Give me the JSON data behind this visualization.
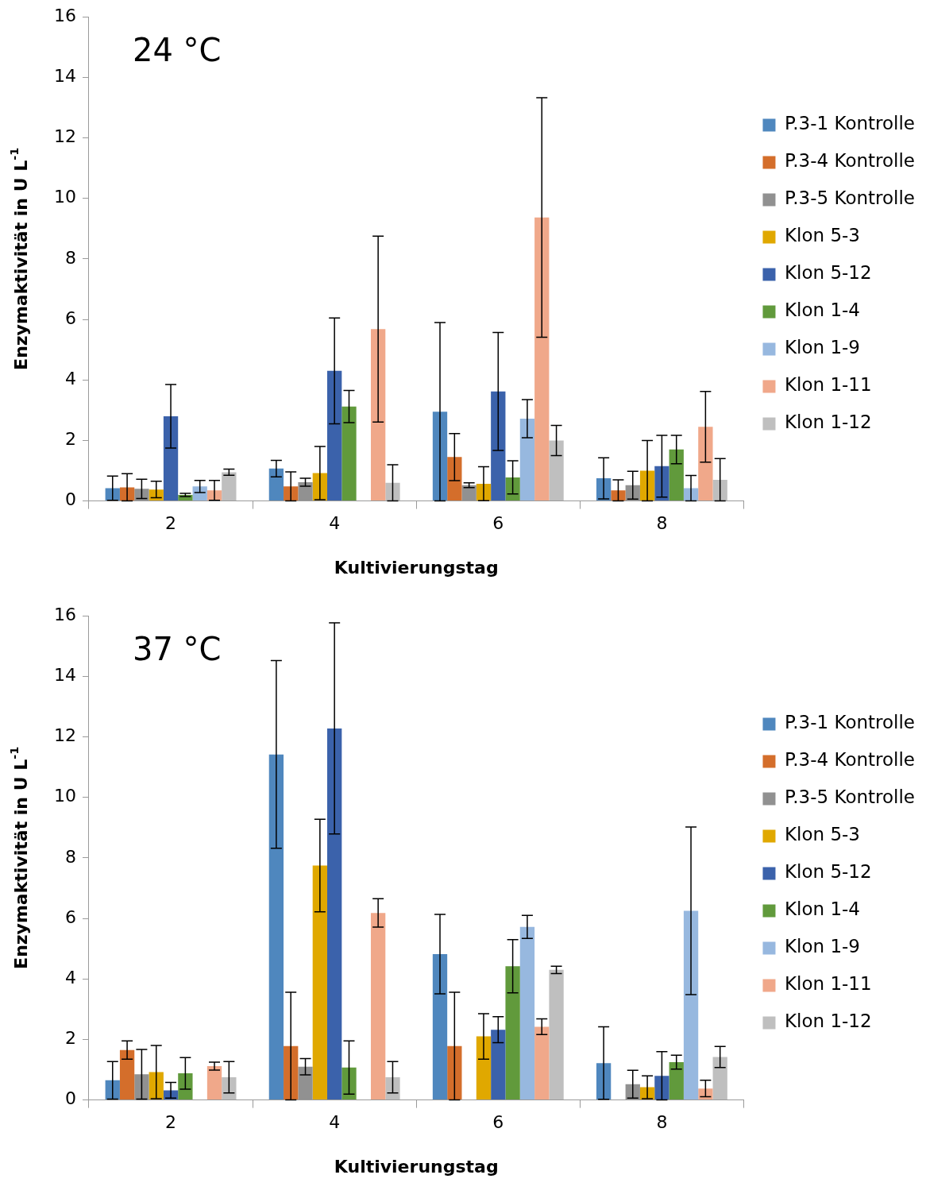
{
  "chart_data": [
    {
      "type": "bar",
      "annotations": [
        "24 °C"
      ],
      "xlabel": "Kultivierungstag",
      "ylabel": "Enzymaktivität in U L$^{-1}$",
      "categories": [
        "2",
        "4",
        "6",
        "8"
      ],
      "ylim": [
        0,
        16
      ],
      "yticks": [
        0,
        2,
        4,
        6,
        8,
        10,
        12,
        14,
        16
      ],
      "legend": "right",
      "series": [
        {
          "name": "P.3-1 Kontrolle",
          "color": "#4f87be",
          "values": [
            0.42,
            1.07,
            2.95,
            0.75
          ],
          "errors": [
            0.4,
            0.27,
            2.95,
            0.68
          ]
        },
        {
          "name": "P.3-4 Kontrolle",
          "color": "#d46e2b",
          "values": [
            0.45,
            0.48,
            1.45,
            0.35
          ],
          "errors": [
            0.45,
            0.48,
            0.78,
            0.35
          ]
        },
        {
          "name": "P.3-5 Kontrolle",
          "color": "#919191",
          "values": [
            0.4,
            0.62,
            0.52,
            0.52
          ],
          "errors": [
            0.32,
            0.13,
            0.08,
            0.46
          ]
        },
        {
          "name": "Klon 5-3",
          "color": "#e0a800",
          "values": [
            0.38,
            0.92,
            0.57,
            1.0
          ],
          "errors": [
            0.27,
            0.88,
            0.56,
            1.0
          ]
        },
        {
          "name": "Klon 5-12",
          "color": "#3b62ab",
          "values": [
            2.8,
            4.3,
            3.62,
            1.15
          ],
          "errors": [
            1.05,
            1.75,
            1.95,
            1.02
          ]
        },
        {
          "name": "Klon 1-4",
          "color": "#619a3c",
          "values": [
            0.2,
            3.12,
            0.78,
            1.7
          ],
          "errors": [
            0.05,
            0.53,
            0.55,
            0.47
          ]
        },
        {
          "name": "Klon 1-9",
          "color": "#97b8df",
          "values": [
            0.48,
            null,
            2.72,
            0.42
          ],
          "errors": [
            0.2,
            null,
            0.63,
            0.42
          ]
        },
        {
          "name": "Klon 1-11",
          "color": "#f0a88a",
          "values": [
            0.35,
            5.68,
            9.37,
            2.45
          ],
          "errors": [
            0.33,
            3.07,
            3.96,
            1.17
          ]
        },
        {
          "name": "Klon 1-12",
          "color": "#bfbfbf",
          "values": [
            0.95,
            0.6,
            2.0,
            0.7
          ],
          "errors": [
            0.1,
            0.6,
            0.5,
            0.7
          ]
        }
      ]
    },
    {
      "type": "bar",
      "annotations": [
        "37 °C"
      ],
      "xlabel": "Kultivierungstag",
      "ylabel": "Enzymaktivität in U L$^{-1}$",
      "categories": [
        "2",
        "4",
        "6",
        "8"
      ],
      "ylim": [
        0,
        16
      ],
      "yticks": [
        0,
        2,
        4,
        6,
        8,
        10,
        12,
        14,
        16
      ],
      "legend": "right",
      "series": [
        {
          "name": "P.3-1 Kontrolle",
          "color": "#4f87be",
          "values": [
            0.65,
            11.42,
            4.82,
            1.22
          ],
          "errors": [
            0.62,
            3.1,
            1.31,
            1.2
          ]
        },
        {
          "name": "P.3-4 Kontrolle",
          "color": "#d46e2b",
          "values": [
            1.65,
            1.78,
            1.78,
            null
          ],
          "errors": [
            0.3,
            1.78,
            1.78,
            null
          ]
        },
        {
          "name": "P.3-5 Kontrolle",
          "color": "#919191",
          "values": [
            0.85,
            1.1,
            null,
            0.52
          ],
          "errors": [
            0.82,
            0.27,
            null,
            0.46
          ]
        },
        {
          "name": "Klon 5-3",
          "color": "#e0a800",
          "values": [
            0.92,
            7.75,
            2.1,
            0.42
          ],
          "errors": [
            0.88,
            1.53,
            0.75,
            0.38
          ]
        },
        {
          "name": "Klon 5-12",
          "color": "#3b62ab",
          "values": [
            0.32,
            12.28,
            2.32,
            0.8
          ],
          "errors": [
            0.26,
            3.49,
            0.43,
            0.8
          ]
        },
        {
          "name": "Klon 1-4",
          "color": "#619a3c",
          "values": [
            0.88,
            1.07,
            4.42,
            1.25
          ],
          "errors": [
            0.52,
            0.88,
            0.88,
            0.23
          ]
        },
        {
          "name": "Klon 1-9",
          "color": "#97b8df",
          "values": [
            null,
            null,
            5.72,
            6.25
          ],
          "errors": [
            null,
            null,
            0.38,
            2.77
          ]
        },
        {
          "name": "Klon 1-11",
          "color": "#f0a88a",
          "values": [
            1.12,
            6.18,
            2.42,
            0.38
          ],
          "errors": [
            0.13,
            0.47,
            0.26,
            0.27
          ]
        },
        {
          "name": "Klon 1-12",
          "color": "#bfbfbf",
          "values": [
            0.75,
            0.75,
            4.3,
            1.42
          ],
          "errors": [
            0.52,
            0.52,
            0.12,
            0.35
          ]
        }
      ]
    }
  ]
}
